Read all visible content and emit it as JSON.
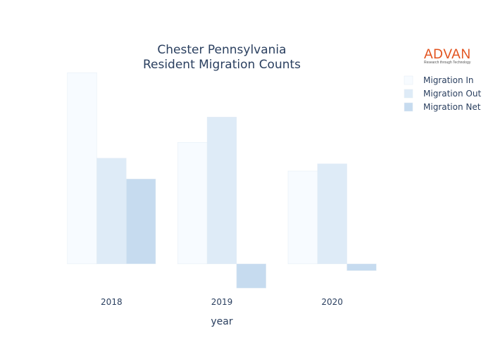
{
  "logo": {
    "name": "ADVAN",
    "tagline": "Research through Technology"
  },
  "chart_data": {
    "type": "bar",
    "title_lines": [
      "Chester Pennsylvania",
      "Resident Migration Counts"
    ],
    "xlabel": "year",
    "ylabel": "",
    "categories": [
      "2018",
      "2019",
      "2020"
    ],
    "ylim": [
      -220,
      1720
    ],
    "series": [
      {
        "name": "Migration In",
        "color": "#f7fbff",
        "values": [
          1700,
          1080,
          825
        ]
      },
      {
        "name": "Migration Out",
        "color": "#deebf7",
        "values": [
          940,
          1305,
          890
        ]
      },
      {
        "name": "Migration Net",
        "color": "#c6dbef",
        "values": [
          755,
          -215,
          -60
        ]
      }
    ],
    "legend_position": "top-right",
    "grid": false
  }
}
